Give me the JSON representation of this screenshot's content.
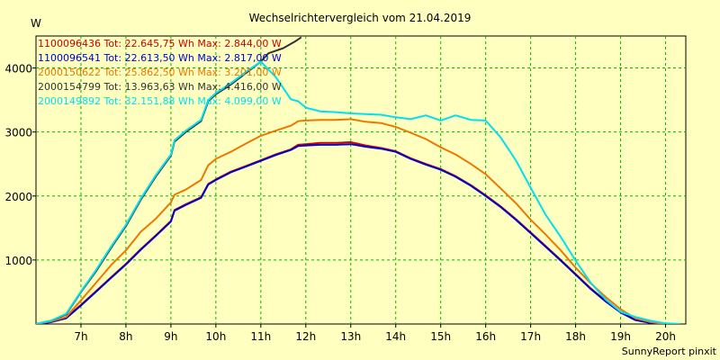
{
  "chart_data": {
    "type": "line",
    "title": "Wechselrichtervergleich vom 21.04.2019",
    "ylabel": "W",
    "xlabel": "",
    "footer": "SunnyReport pinxit",
    "xlim": [
      6.0,
      20.45
    ],
    "ylim": [
      0,
      4500
    ],
    "x_ticks": [
      7,
      8,
      9,
      10,
      11,
      12,
      13,
      14,
      15,
      16,
      17,
      18,
      19,
      20
    ],
    "x_tick_labels": [
      "7h",
      "8h",
      "9h",
      "10h",
      "11h",
      "12h",
      "13h",
      "14h",
      "15h",
      "16h",
      "17h",
      "18h",
      "19h",
      "20h"
    ],
    "y_ticks": [
      1000,
      2000,
      3000,
      4000
    ],
    "y_tick_labels": [
      "1000",
      "2000",
      "3000",
      "4000"
    ],
    "grid": true,
    "legend_position": "top-left",
    "series": [
      {
        "name": "1100096436",
        "legend_text": "1100096436 Tot: 22.645,75 Wh Max: 2.844,00 W",
        "color": "#cc0000",
        "points": [
          [
            6.0,
            0
          ],
          [
            6.33,
            30
          ],
          [
            6.67,
            100
          ],
          [
            7.0,
            300
          ],
          [
            7.33,
            510
          ],
          [
            7.67,
            730
          ],
          [
            8.0,
            940
          ],
          [
            8.33,
            1170
          ],
          [
            8.67,
            1390
          ],
          [
            9.0,
            1610
          ],
          [
            9.08,
            1780
          ],
          [
            9.33,
            1870
          ],
          [
            9.67,
            1980
          ],
          [
            9.83,
            2190
          ],
          [
            10.0,
            2260
          ],
          [
            10.33,
            2380
          ],
          [
            10.67,
            2470
          ],
          [
            11.0,
            2560
          ],
          [
            11.33,
            2650
          ],
          [
            11.67,
            2730
          ],
          [
            11.83,
            2800
          ],
          [
            12.0,
            2810
          ],
          [
            12.33,
            2830
          ],
          [
            12.67,
            2830
          ],
          [
            13.0,
            2840
          ],
          [
            13.33,
            2790
          ],
          [
            13.67,
            2750
          ],
          [
            14.0,
            2700
          ],
          [
            14.33,
            2590
          ],
          [
            14.67,
            2500
          ],
          [
            15.0,
            2420
          ],
          [
            15.33,
            2310
          ],
          [
            15.67,
            2170
          ],
          [
            16.0,
            2010
          ],
          [
            16.33,
            1840
          ],
          [
            16.67,
            1640
          ],
          [
            17.0,
            1430
          ],
          [
            17.33,
            1220
          ],
          [
            17.67,
            1000
          ],
          [
            18.0,
            780
          ],
          [
            18.33,
            560
          ],
          [
            18.67,
            360
          ],
          [
            19.0,
            190
          ],
          [
            19.33,
            70
          ],
          [
            19.67,
            20
          ],
          [
            20.0,
            0
          ],
          [
            20.33,
            0
          ]
        ]
      },
      {
        "name": "1100096541",
        "legend_text": "1100096541 Tot: 22.613,50 Wh Max: 2.817,00 W",
        "color": "#0000cc",
        "points": [
          [
            6.0,
            0
          ],
          [
            6.33,
            30
          ],
          [
            6.67,
            90
          ],
          [
            7.0,
            290
          ],
          [
            7.33,
            500
          ],
          [
            7.67,
            720
          ],
          [
            8.0,
            930
          ],
          [
            8.33,
            1160
          ],
          [
            8.67,
            1380
          ],
          [
            9.0,
            1600
          ],
          [
            9.08,
            1770
          ],
          [
            9.33,
            1860
          ],
          [
            9.67,
            1970
          ],
          [
            9.83,
            2180
          ],
          [
            10.0,
            2250
          ],
          [
            10.33,
            2370
          ],
          [
            10.67,
            2460
          ],
          [
            11.0,
            2550
          ],
          [
            11.33,
            2640
          ],
          [
            11.67,
            2720
          ],
          [
            11.83,
            2780
          ],
          [
            12.0,
            2790
          ],
          [
            12.33,
            2800
          ],
          [
            12.67,
            2800
          ],
          [
            13.0,
            2810
          ],
          [
            13.33,
            2770
          ],
          [
            13.67,
            2740
          ],
          [
            14.0,
            2690
          ],
          [
            14.33,
            2580
          ],
          [
            14.67,
            2490
          ],
          [
            15.0,
            2410
          ],
          [
            15.33,
            2300
          ],
          [
            15.67,
            2160
          ],
          [
            16.0,
            2000
          ],
          [
            16.33,
            1830
          ],
          [
            16.67,
            1630
          ],
          [
            17.0,
            1420
          ],
          [
            17.33,
            1210
          ],
          [
            17.67,
            990
          ],
          [
            18.0,
            770
          ],
          [
            18.33,
            550
          ],
          [
            18.67,
            350
          ],
          [
            19.0,
            180
          ],
          [
            19.33,
            60
          ],
          [
            19.67,
            15
          ],
          [
            20.0,
            0
          ],
          [
            20.33,
            0
          ]
        ]
      },
      {
        "name": "2000150622",
        "legend_text": "2000150622 Tot: 25.862,50 Wh Max: 3.201,00 W",
        "color": "#ee7700",
        "points": [
          [
            6.0,
            0
          ],
          [
            6.33,
            40
          ],
          [
            6.67,
            110
          ],
          [
            7.0,
            370
          ],
          [
            7.33,
            640
          ],
          [
            7.67,
            920
          ],
          [
            8.0,
            1150
          ],
          [
            8.33,
            1440
          ],
          [
            8.67,
            1650
          ],
          [
            9.0,
            1900
          ],
          [
            9.08,
            2020
          ],
          [
            9.33,
            2100
          ],
          [
            9.67,
            2250
          ],
          [
            9.83,
            2480
          ],
          [
            10.0,
            2580
          ],
          [
            10.33,
            2690
          ],
          [
            10.67,
            2820
          ],
          [
            11.0,
            2940
          ],
          [
            11.33,
            3020
          ],
          [
            11.67,
            3100
          ],
          [
            11.83,
            3170
          ],
          [
            12.0,
            3180
          ],
          [
            12.33,
            3190
          ],
          [
            12.67,
            3190
          ],
          [
            13.0,
            3200
          ],
          [
            13.33,
            3160
          ],
          [
            13.67,
            3140
          ],
          [
            14.0,
            3080
          ],
          [
            14.33,
            2990
          ],
          [
            14.67,
            2890
          ],
          [
            15.0,
            2760
          ],
          [
            15.33,
            2650
          ],
          [
            15.67,
            2500
          ],
          [
            16.0,
            2340
          ],
          [
            16.33,
            2120
          ],
          [
            16.67,
            1890
          ],
          [
            17.0,
            1630
          ],
          [
            17.33,
            1400
          ],
          [
            17.67,
            1150
          ],
          [
            18.0,
            880
          ],
          [
            18.33,
            640
          ],
          [
            18.67,
            420
          ],
          [
            19.0,
            230
          ],
          [
            19.33,
            90
          ],
          [
            19.67,
            30
          ],
          [
            20.0,
            0
          ],
          [
            20.33,
            0
          ]
        ]
      },
      {
        "name": "2000154799",
        "legend_text": "2000154799 Tot: 13.963,63 Wh Max: 4.416,00 W",
        "color": "#333333",
        "points": [
          [
            6.0,
            0
          ],
          [
            6.33,
            50
          ],
          [
            6.67,
            150
          ],
          [
            7.0,
            500
          ],
          [
            7.33,
            820
          ],
          [
            7.67,
            1190
          ],
          [
            8.0,
            1530
          ],
          [
            8.33,
            1940
          ],
          [
            8.67,
            2310
          ],
          [
            9.0,
            2630
          ],
          [
            9.08,
            2850
          ],
          [
            9.33,
            3000
          ],
          [
            9.67,
            3170
          ],
          [
            9.83,
            3480
          ],
          [
            10.0,
            3590
          ],
          [
            10.33,
            3740
          ],
          [
            10.67,
            3920
          ],
          [
            11.0,
            4100
          ],
          [
            11.17,
            4230
          ],
          [
            11.5,
            4310
          ],
          [
            11.75,
            4410
          ],
          [
            11.9,
            4480
          ]
        ]
      },
      {
        "name": "2000149892",
        "legend_text": "2000149892 Tot: 32.151,88 Wh Max: 4.099,00 W",
        "color": "#00e0f0",
        "points": [
          [
            6.0,
            0
          ],
          [
            6.33,
            50
          ],
          [
            6.67,
            160
          ],
          [
            7.0,
            510
          ],
          [
            7.33,
            840
          ],
          [
            7.67,
            1210
          ],
          [
            8.0,
            1550
          ],
          [
            8.33,
            1960
          ],
          [
            8.67,
            2330
          ],
          [
            9.0,
            2650
          ],
          [
            9.08,
            2870
          ],
          [
            9.33,
            3020
          ],
          [
            9.67,
            3190
          ],
          [
            9.83,
            3500
          ],
          [
            10.0,
            3610
          ],
          [
            10.33,
            3760
          ],
          [
            10.67,
            3940
          ],
          [
            11.0,
            4100
          ],
          [
            11.33,
            3860
          ],
          [
            11.67,
            3510
          ],
          [
            11.83,
            3480
          ],
          [
            12.0,
            3380
          ],
          [
            12.33,
            3320
          ],
          [
            12.67,
            3310
          ],
          [
            13.0,
            3290
          ],
          [
            13.33,
            3280
          ],
          [
            13.67,
            3270
          ],
          [
            14.0,
            3230
          ],
          [
            14.33,
            3200
          ],
          [
            14.67,
            3260
          ],
          [
            15.0,
            3180
          ],
          [
            15.33,
            3260
          ],
          [
            15.67,
            3190
          ],
          [
            16.0,
            3180
          ],
          [
            16.33,
            2920
          ],
          [
            16.67,
            2560
          ],
          [
            17.0,
            2130
          ],
          [
            17.33,
            1710
          ],
          [
            17.67,
            1360
          ],
          [
            18.0,
            990
          ],
          [
            18.33,
            650
          ],
          [
            18.67,
            380
          ],
          [
            19.0,
            190
          ],
          [
            19.33,
            110
          ],
          [
            19.67,
            50
          ],
          [
            20.0,
            10
          ],
          [
            20.33,
            0
          ]
        ]
      }
    ]
  }
}
